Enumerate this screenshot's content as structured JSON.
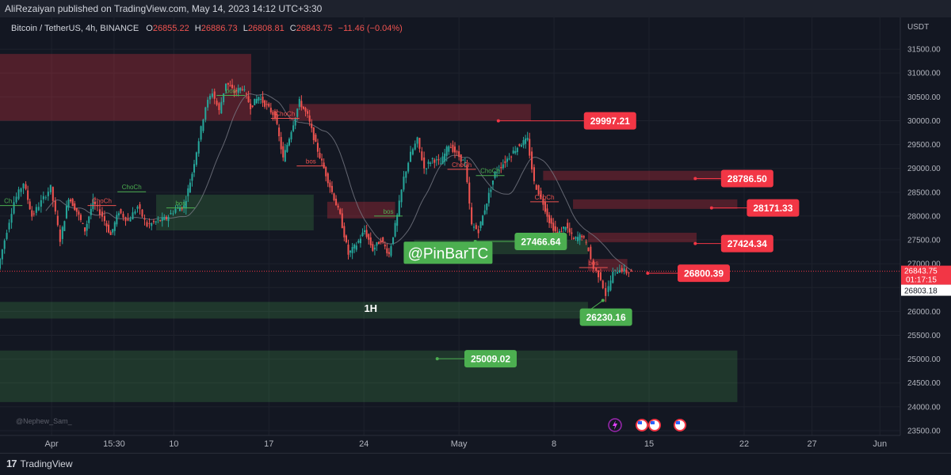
{
  "header": {
    "publish_text": "AliRezaiyan published on TradingView.com, May 14, 2023 14:12 UTC+3:30"
  },
  "legend": {
    "symbol": "Bitcoin / TetherUS, 4h, BINANCE",
    "o_label": "O",
    "o_value": "26855.22",
    "h_label": "H",
    "h_value": "26886.73",
    "l_label": "L",
    "l_value": "26808.81",
    "c_label": "C",
    "c_value": "26843.75",
    "change": "−11.46 (−0.04%)"
  },
  "axis": {
    "currency": "USDT"
  },
  "price_tags": {
    "current_price": "26843.75",
    "countdown": "01:17:15",
    "secondary_price": "26803.18"
  },
  "watermark": "@Nephew_Sam_",
  "brand": "TradingView",
  "colors": {
    "background": "#131722",
    "up": "#26a69a",
    "down": "#ef5350",
    "supply_zone": "#f23645",
    "demand_zone": "#4caf50",
    "label_red": "#f23645",
    "label_green": "#4caf50"
  },
  "chart_data": {
    "type": "candlestick",
    "y_axis": {
      "ylim": [
        23400,
        32000
      ],
      "ticks": [
        23500,
        24000,
        24500,
        25000,
        25500,
        26000,
        26500,
        27000,
        27500,
        28000,
        28500,
        29000,
        29500,
        30000,
        30500,
        31000,
        31500
      ],
      "tick_labels": [
        "23500.00",
        "24000.00",
        "24500.00",
        "25000.00",
        "25500.00",
        "26000.00",
        "26500.00",
        "27000.00",
        "27500.00",
        "28000.00",
        "28500.00",
        "29000.00",
        "29500.00",
        "30000.00",
        "30500.00",
        "31000.00",
        "31500.00"
      ]
    },
    "x_axis": {
      "labels": [
        {
          "text": "Apr",
          "day": 1
        },
        {
          "text": "15:30",
          "day": 5.6
        },
        {
          "text": "10",
          "day": 10
        },
        {
          "text": "17",
          "day": 17
        },
        {
          "text": "24",
          "day": 24
        },
        {
          "text": "May",
          "day": 31
        },
        {
          "text": "8",
          "day": 38
        },
        {
          "text": "15",
          "day": 45
        },
        {
          "text": "22",
          "day": 52
        },
        {
          "text": "27",
          "day": 57
        },
        {
          "text": "Jun",
          "day": 62
        }
      ]
    },
    "zones": [
      {
        "kind": "supply",
        "x1": -2.8,
        "x2": 15.7,
        "y1": 30000,
        "y2": 31400
      },
      {
        "kind": "supply",
        "x1": 18.5,
        "x2": 36.3,
        "y1": 30000,
        "y2": 30350
      },
      {
        "kind": "supply",
        "x1": 37.2,
        "x2": 51.5,
        "y1": 28750,
        "y2": 28950
      },
      {
        "kind": "supply",
        "x1": 39.4,
        "x2": 51.5,
        "y1": 28150,
        "y2": 28350
      },
      {
        "kind": "supply",
        "x1": 40.5,
        "x2": 48.5,
        "y1": 27450,
        "y2": 27650
      },
      {
        "kind": "supply",
        "x1": 40.5,
        "x2": 43.4,
        "y1": 26850,
        "y2": 27100
      },
      {
        "kind": "supply",
        "x1": 21.3,
        "x2": 26.3,
        "y1": 27950,
        "y2": 28300
      },
      {
        "kind": "demand",
        "x1": 8.7,
        "x2": 20.3,
        "y1": 27700,
        "y2": 28450
      },
      {
        "kind": "demand",
        "x1": 27.7,
        "x2": 40.5,
        "y1": 27200,
        "y2": 27500
      },
      {
        "kind": "demand",
        "x1": -2.8,
        "x2": 40.5,
        "y1": 25850,
        "y2": 26200
      },
      {
        "kind": "demand",
        "x1": -2.8,
        "x2": 51.5,
        "y1": 24100,
        "y2": 25180
      }
    ],
    "annotations": [
      {
        "text": "29997.21",
        "value": 29997.21,
        "kind": "red",
        "point_day": 33.9,
        "box_day": 40.2
      },
      {
        "text": "28786.50",
        "value": 28786.5,
        "kind": "red",
        "point_day": 48.4,
        "box_day": 50.3
      },
      {
        "text": "28171.33",
        "value": 28171.33,
        "kind": "red",
        "point_day": 49.6,
        "box_day": 52.2
      },
      {
        "text": "27424.34",
        "value": 27424.34,
        "kind": "red",
        "point_day": 48.4,
        "box_day": 50.3
      },
      {
        "text": "26800.39",
        "value": 26800.39,
        "kind": "red",
        "point_day": 44.9,
        "box_day": 47.1
      },
      {
        "text": "27466.64",
        "value": 27466.64,
        "kind": "green",
        "point_day": 32.2,
        "box_day": 35.1
      },
      {
        "text": "26230.16",
        "value": 26230.16,
        "kind": "green",
        "point_day": 41.6,
        "box_day": 39.9,
        "label_value": 25880
      },
      {
        "text": "25009.02",
        "value": 25009.02,
        "kind": "green",
        "point_day": 29.4,
        "box_day": 31.4
      }
    ],
    "structure_labels": [
      {
        "text": "bos",
        "kind": "green",
        "day": 14.2,
        "value": 30580
      },
      {
        "text": "ChoCh",
        "kind": "green",
        "day": 6.9,
        "value": 28560
      },
      {
        "text": "ChoCh",
        "kind": "red",
        "day": 4.7,
        "value": 28270
      },
      {
        "text": "bos",
        "kind": "green",
        "day": 10.5,
        "value": 28220
      },
      {
        "text": "ChoCh",
        "kind": "red",
        "day": 18.2,
        "value": 30100
      },
      {
        "text": "bos",
        "kind": "red",
        "day": 20.1,
        "value": 29100
      },
      {
        "text": "bos",
        "kind": "green",
        "day": 25.8,
        "value": 28050
      },
      {
        "text": "ChoCh",
        "kind": "red",
        "day": 31.2,
        "value": 29030
      },
      {
        "text": "ChoCh",
        "kind": "green",
        "day": 33.3,
        "value": 28900
      },
      {
        "text": "ChoCh",
        "kind": "red",
        "day": 37.3,
        "value": 28350
      },
      {
        "text": "bos",
        "kind": "red",
        "day": 40.9,
        "value": 26970
      },
      {
        "text": "Ch",
        "kind": "green",
        "day": -2.2,
        "value": 28270
      }
    ],
    "text_marks": [
      {
        "text": "1H",
        "day": 24.5,
        "value": 26060
      },
      {
        "text": "@PinBarTC",
        "day": 30.2,
        "value": 27230
      }
    ],
    "current_price": 26843.75,
    "path": [
      [
        -2.8,
        26900
      ],
      [
        -2.3,
        27500
      ],
      [
        -1.6,
        28300
      ],
      [
        -0.9,
        28700
      ],
      [
        -0.3,
        28000
      ],
      [
        0.4,
        28300
      ],
      [
        1.1,
        28600
      ],
      [
        1.8,
        27500
      ],
      [
        2.4,
        28400
      ],
      [
        3.0,
        28100
      ],
      [
        3.6,
        27700
      ],
      [
        4.2,
        28300
      ],
      [
        4.9,
        28000
      ],
      [
        5.5,
        27600
      ],
      [
        6.1,
        28100
      ],
      [
        6.8,
        27900
      ],
      [
        7.5,
        28200
      ],
      [
        8.2,
        27800
      ],
      [
        9.0,
        27900
      ],
      [
        9.6,
        27950
      ],
      [
        10.3,
        28150
      ],
      [
        10.9,
        28200
      ],
      [
        11.5,
        28900
      ],
      [
        12.0,
        29600
      ],
      [
        12.5,
        30300
      ],
      [
        13.0,
        30600
      ],
      [
        13.5,
        30200
      ],
      [
        14.0,
        30800
      ],
      [
        14.6,
        30600
      ],
      [
        15.2,
        30700
      ],
      [
        15.8,
        30300
      ],
      [
        16.4,
        30500
      ],
      [
        17.0,
        30300
      ],
      [
        17.6,
        30100
      ],
      [
        18.2,
        29200
      ],
      [
        18.8,
        29800
      ],
      [
        19.4,
        30400
      ],
      [
        20.0,
        30100
      ],
      [
        20.6,
        29500
      ],
      [
        21.2,
        29000
      ],
      [
        21.8,
        28500
      ],
      [
        22.4,
        28000
      ],
      [
        23.0,
        27200
      ],
      [
        23.6,
        27400
      ],
      [
        24.2,
        27700
      ],
      [
        24.8,
        27300
      ],
      [
        25.4,
        27500
      ],
      [
        26.0,
        27200
      ],
      [
        26.6,
        28000
      ],
      [
        27.1,
        28800
      ],
      [
        27.6,
        29300
      ],
      [
        28.1,
        29600
      ],
      [
        28.6,
        29000
      ],
      [
        29.2,
        29200
      ],
      [
        29.8,
        29100
      ],
      [
        30.4,
        29500
      ],
      [
        31.0,
        29300
      ],
      [
        31.6,
        29100
      ],
      [
        32.1,
        27800
      ],
      [
        32.6,
        27700
      ],
      [
        33.2,
        28300
      ],
      [
        33.8,
        28900
      ],
      [
        34.4,
        29100
      ],
      [
        35.0,
        29300
      ],
      [
        35.6,
        29500
      ],
      [
        36.2,
        29600
      ],
      [
        36.7,
        28700
      ],
      [
        37.2,
        28400
      ],
      [
        37.8,
        27900
      ],
      [
        38.4,
        27600
      ],
      [
        39.0,
        27800
      ],
      [
        39.6,
        27500
      ],
      [
        40.2,
        27600
      ],
      [
        40.7,
        27300
      ],
      [
        41.1,
        26900
      ],
      [
        41.6,
        26700
      ],
      [
        42.0,
        26350
      ],
      [
        42.5,
        26800
      ],
      [
        43.0,
        26900
      ],
      [
        43.5,
        26820
      ],
      [
        43.9,
        26843.75
      ]
    ]
  }
}
